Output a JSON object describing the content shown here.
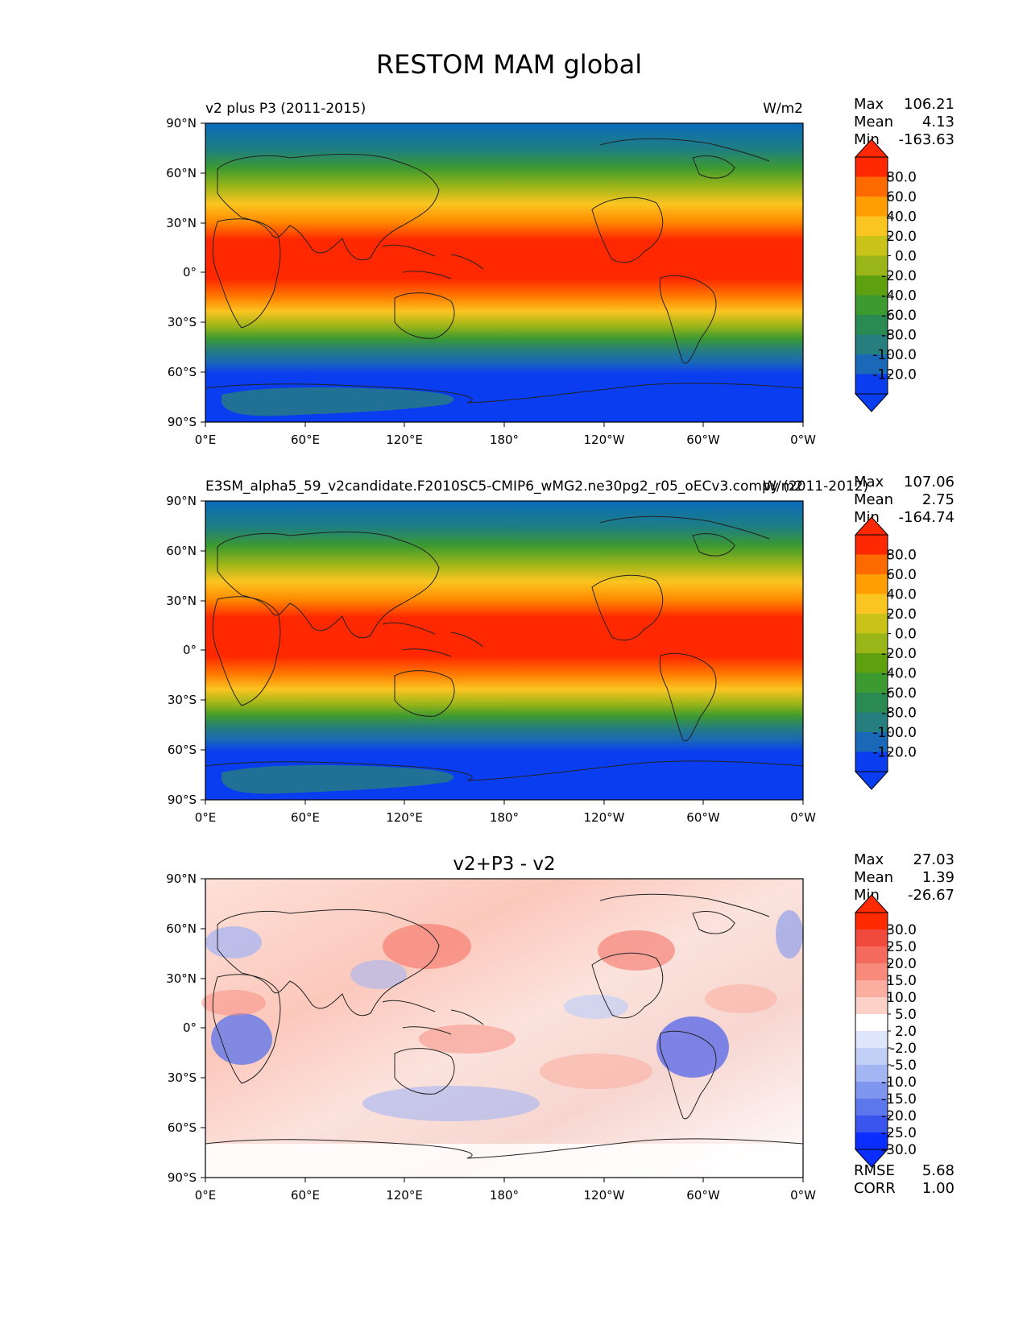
{
  "title": "RESTOM MAM global",
  "units": "W/m2",
  "lat_ticks": [
    "90°N",
    "60°N",
    "30°N",
    "0°",
    "30°S",
    "60°S",
    "90°S"
  ],
  "lon_ticks": [
    "0°E",
    "60°E",
    "120°E",
    "180°",
    "120°W",
    "60°W",
    "0°W"
  ],
  "stat_labels": {
    "max": "Max",
    "mean": "Mean",
    "min": "Min",
    "rmse": "RMSE",
    "corr": "CORR"
  },
  "panels": [
    {
      "name": "test",
      "left_title": "v2 plus P3 (2011-2015)",
      "center_title": "",
      "right_title": "W/m2",
      "stats": {
        "max": "106.21",
        "mean": "4.13",
        "min": "-163.63"
      },
      "colorbar_labels": [
        "80.0",
        "60.0",
        "40.0",
        "20.0",
        "0.0",
        "-20.0",
        "-40.0",
        "-60.0",
        "-80.0",
        "-100.0",
        "-120.0"
      ]
    },
    {
      "name": "ref",
      "left_title": "E3SM_alpha5_59_v2candidate.F2010SC5-CMIP6_wMG2.ne30pg2_r05_oECv3.compy (2011-2012)",
      "center_title": "",
      "right_title": "W/m2",
      "stats": {
        "max": "107.06",
        "mean": "2.75",
        "min": "-164.74"
      },
      "colorbar_labels": [
        "80.0",
        "60.0",
        "40.0",
        "20.0",
        "0.0",
        "-20.0",
        "-40.0",
        "-60.0",
        "-80.0",
        "-100.0",
        "-120.0"
      ]
    },
    {
      "name": "diff",
      "left_title": "",
      "center_title": "v2+P3 - v2",
      "right_title": "",
      "stats": {
        "max": "27.03",
        "mean": "1.39",
        "min": "-26.67"
      },
      "extra_stats": {
        "rmse": "5.68",
        "corr": "1.00"
      },
      "colorbar_labels": [
        "30.0",
        "25.0",
        "20.0",
        "15.0",
        "10.0",
        "5.0",
        "2.0",
        "-2.0",
        "-5.0",
        "-10.0",
        "-15.0",
        "-20.0",
        "-25.0",
        "-30.0"
      ]
    }
  ],
  "colors": {
    "field_levels": [
      "#ff2800",
      "#ff6a00",
      "#ff9e00",
      "#fbc521",
      "#c9c218",
      "#9ab518",
      "#5ea00f",
      "#3d9a30",
      "#2a8a52",
      "#267e7e",
      "#1a68b8",
      "#0a3cf0"
    ],
    "diff_levels": [
      "#ff2a00",
      "#f04a3c",
      "#f46a5c",
      "#f88a7c",
      "#fbad9f",
      "#fdd0c8",
      "#ffffff",
      "#dfe6fb",
      "#c2cff7",
      "#a3b6f3",
      "#7f96ef",
      "#5c76ec",
      "#3a54ee",
      "#0a2eff"
    ],
    "land_outline": "#222222"
  },
  "chart_data": [
    {
      "type": "heatmap",
      "title": "v2 plus P3 (2011-2015)",
      "units": "W/m2",
      "levels": [
        -120,
        -100,
        -80,
        -60,
        -40,
        -20,
        0,
        20,
        40,
        60,
        80
      ],
      "xlim": [
        0,
        360
      ],
      "ylim": [
        -90,
        90
      ],
      "stats": {
        "max": 106.21,
        "mean": 4.13,
        "min": -163.63
      }
    },
    {
      "type": "heatmap",
      "title": "E3SM_alpha5_59_v2candidate.F2010SC5-CMIP6_wMG2.ne30pg2_r05_oECv3.compy (2011-2012)",
      "units": "W/m2",
      "levels": [
        -120,
        -100,
        -80,
        -60,
        -40,
        -20,
        0,
        20,
        40,
        60,
        80
      ],
      "xlim": [
        0,
        360
      ],
      "ylim": [
        -90,
        90
      ],
      "stats": {
        "max": 107.06,
        "mean": 2.75,
        "min": -164.74
      }
    },
    {
      "type": "heatmap",
      "title": "v2+P3 - v2",
      "units": "W/m2",
      "levels": [
        -30,
        -25,
        -20,
        -15,
        -10,
        -5,
        -2,
        2,
        5,
        10,
        15,
        20,
        25,
        30
      ],
      "xlim": [
        0,
        360
      ],
      "ylim": [
        -90,
        90
      ],
      "stats": {
        "max": 27.03,
        "mean": 1.39,
        "min": -26.67,
        "rmse": 5.68,
        "corr": 1.0
      }
    }
  ]
}
